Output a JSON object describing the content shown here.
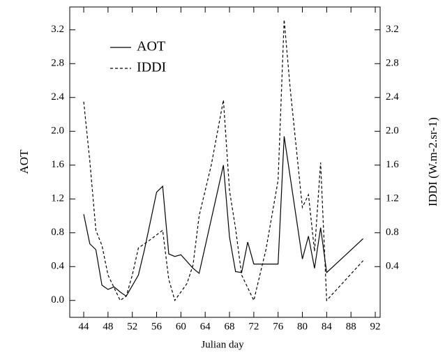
{
  "chart_data": {
    "type": "line",
    "xlabel": "Julian day",
    "ylabel": "AOT",
    "y2label": "IDDI (W.m-2.sr-1)",
    "xlim": [
      41.7,
      92.8
    ],
    "xticks": [
      44,
      48,
      52,
      56,
      60,
      64,
      68,
      72,
      76,
      80,
      84,
      88,
      92
    ],
    "ylim": [
      -0.2,
      3.47
    ],
    "yticks": [
      {
        "value": 0,
        "label": "0.0"
      },
      0.4,
      0.8,
      1.2,
      1.6,
      {
        "value": 2,
        "label": "2.0"
      },
      2.4,
      2.8,
      3.2
    ],
    "y2lim": [
      -0.2,
      3.47
    ],
    "y2ticks": [
      0.4,
      0.8,
      1.2,
      1.6,
      {
        "value": 2,
        "label": "2.0"
      },
      2.4,
      2.8,
      3.2
    ],
    "legend": "upper left",
    "series": [
      {
        "name": "AOT",
        "color": "#000000",
        "dash": "solid",
        "x": [
          44,
          45,
          46,
          47,
          48,
          49,
          50,
          51,
          53,
          54,
          56,
          57,
          58,
          59,
          60,
          62,
          63,
          67,
          68,
          69,
          70,
          71,
          72,
          76,
          77,
          80,
          81,
          82,
          83,
          84,
          90
        ],
        "values": [
          1.02,
          0.67,
          0.6,
          0.18,
          0.13,
          0.16,
          0.1,
          0.05,
          0.3,
          0.6,
          1.28,
          1.35,
          0.55,
          0.52,
          0.54,
          0.38,
          0.32,
          1.6,
          0.75,
          0.34,
          0.33,
          0.69,
          0.43,
          0.43,
          1.94,
          0.49,
          0.76,
          0.38,
          0.86,
          0.33,
          0.73
        ]
      },
      {
        "name": "IDDI",
        "color": "#000000",
        "dash": "dashed",
        "axis": "y2",
        "x": [
          44,
          45,
          46,
          47,
          48,
          49,
          50,
          51,
          52,
          53,
          55,
          57,
          58,
          59,
          60,
          61,
          62,
          63,
          65,
          67,
          68,
          69,
          70,
          72,
          74,
          76,
          77,
          78,
          80,
          81,
          82,
          83,
          84,
          90
        ],
        "values": [
          2.35,
          1.65,
          0.83,
          0.65,
          0.3,
          0.15,
          0.0,
          0.05,
          0.3,
          0.62,
          0.72,
          0.83,
          0.25,
          0.0,
          0.1,
          0.2,
          0.42,
          1.0,
          1.6,
          2.37,
          1.3,
          0.85,
          0.3,
          0.0,
          0.6,
          1.42,
          3.32,
          2.5,
          1.1,
          1.25,
          0.58,
          1.63,
          0.0,
          0.47
        ]
      }
    ]
  }
}
